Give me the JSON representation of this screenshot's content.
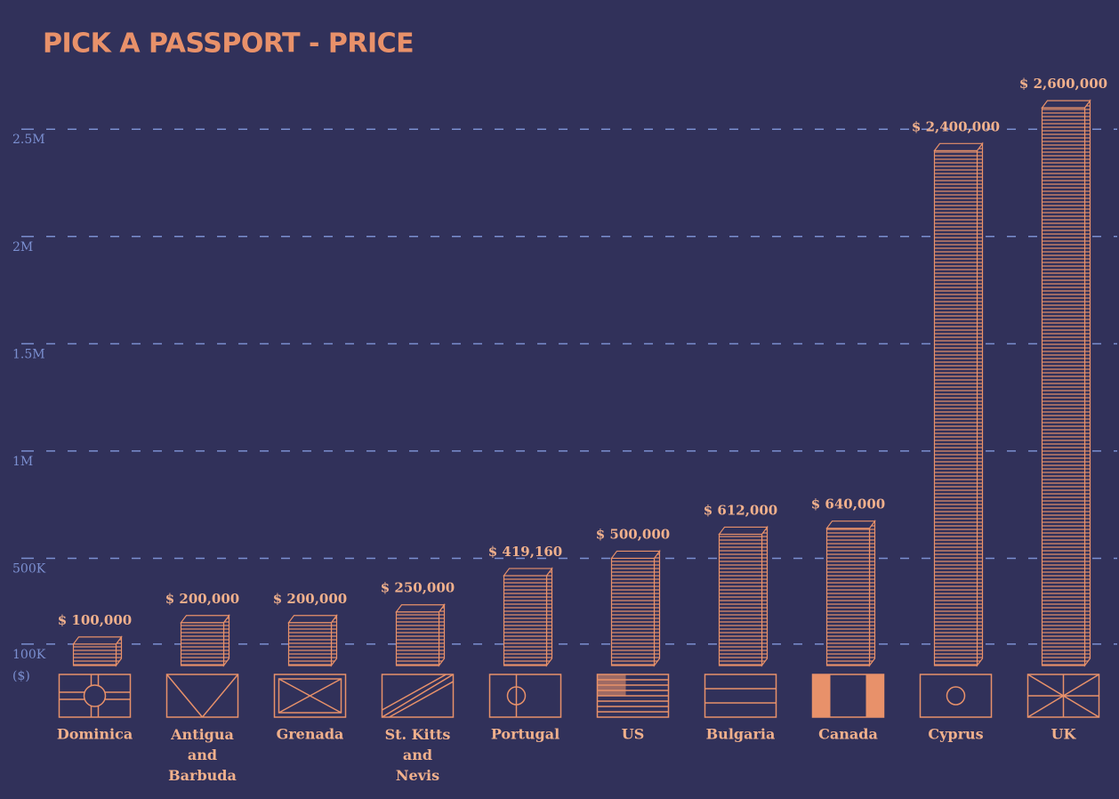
{
  "chart_data": {
    "type": "bar",
    "title": "PICK A PASSPORT - PRICE",
    "categories": [
      "Dominica",
      "Antigua and Barbuda",
      "Grenada",
      "St. Kitts and Nevis",
      "Portugal",
      "US",
      "Bulgaria",
      "Canada",
      "Cyprus",
      "UK"
    ],
    "values": [
      100000,
      200000,
      200000,
      250000,
      419160,
      500000,
      612000,
      640000,
      2400000,
      2600000
    ],
    "value_labels": [
      "$ 100,000",
      "$ 200,000",
      "$ 200,000",
      "$ 250,000",
      "$ 419,160",
      "$ 500,000",
      "$ 612,000",
      "$ 640,000",
      "$ 2,400,000",
      "$ 2,600,000"
    ],
    "color": "#e8916a",
    "ylim": [
      0,
      2700000
    ],
    "yticks": [
      {
        "value": 100000,
        "label": "100K ($)"
      },
      {
        "value": 500000,
        "label": "500K"
      },
      {
        "value": 1000000,
        "label": "1M"
      },
      {
        "value": 1500000,
        "label": "1.5M"
      },
      {
        "value": 2000000,
        "label": "2M"
      },
      {
        "value": 2500000,
        "label": "2.5M"
      }
    ],
    "grid": true
  }
}
